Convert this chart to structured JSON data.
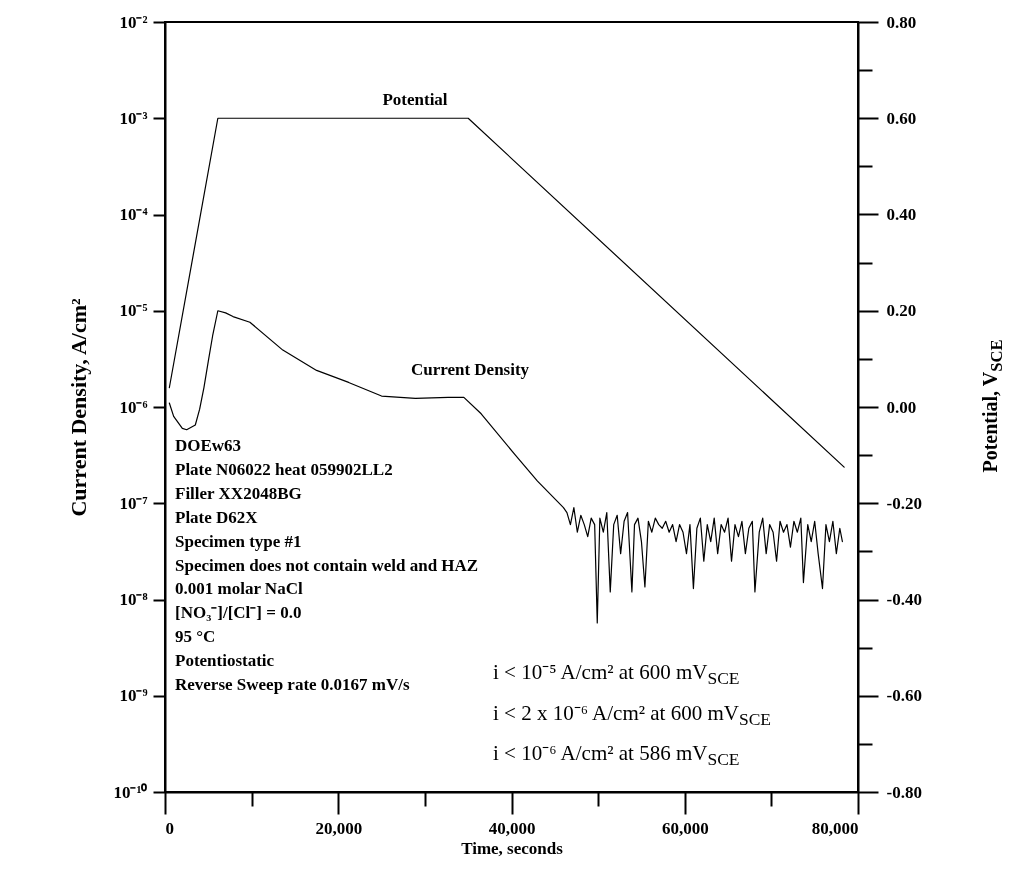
{
  "chart_data": {
    "type": "line",
    "xlabel": "Time, seconds",
    "ylabel": "Current Density, A/cm²",
    "y2label": "Potential, V$_{SCE}$",
    "xlim": [
      0,
      80000
    ],
    "xticks": [
      0,
      {
        "value": 10000,
        "label": null
      },
      {
        "value": 20000,
        "label": "20,000"
      },
      {
        "value": 30000,
        "label": null
      },
      {
        "value": 40000,
        "label": "40,000"
      },
      {
        "value": 50000,
        "label": null
      },
      {
        "value": 60000,
        "label": "60,000"
      },
      {
        "value": 70000,
        "label": null
      },
      {
        "value": 80000,
        "label": "80,000"
      }
    ],
    "ylim": [
      1e-10,
      0.01
    ],
    "log": true,
    "yticks": [
      {
        "value": 0.01,
        "label": "10⁻²"
      },
      {
        "value": 0.001,
        "label": "10⁻³"
      },
      {
        "value": 0.0001,
        "label": "10⁻⁴"
      },
      {
        "value": 1e-05,
        "label": "10⁻⁵"
      },
      {
        "value": 1e-06,
        "label": "10⁻⁶"
      },
      {
        "value": 1e-07,
        "label": "10⁻⁷"
      },
      {
        "value": 1e-08,
        "label": "10⁻⁸"
      },
      {
        "value": 1e-09,
        "label": "10⁻⁹"
      },
      {
        "value": 1e-10,
        "label": "10⁻¹⁰"
      }
    ],
    "y2lim": [
      -0.8,
      0.8
    ],
    "y2ticks": [
      {
        "value": 0.8,
        "label": "0.80"
      },
      {
        "value": 0.7,
        "label": null
      },
      {
        "value": 0.6,
        "label": "0.60"
      },
      {
        "value": 0.5,
        "label": null
      },
      {
        "value": 0.4,
        "label": "0.40"
      },
      {
        "value": 0.3,
        "label": null
      },
      {
        "value": 0.2,
        "label": "0.20"
      },
      {
        "value": 0.1,
        "label": null
      },
      {
        "value": 0,
        "label": "0.00"
      },
      {
        "value": -0.1,
        "label": null
      },
      {
        "value": -0.2,
        "label": "-0.20"
      },
      {
        "value": -0.3,
        "label": null
      },
      {
        "value": -0.4,
        "label": "-0.40"
      },
      {
        "value": -0.5,
        "label": null
      },
      {
        "value": -0.6,
        "label": "-0.60"
      },
      {
        "value": -0.7,
        "label": null
      },
      {
        "value": -0.8,
        "label": "-0.80"
      }
    ],
    "line_style": "solid",
    "series": [
      {
        "name": "Current Density",
        "color": "#000000",
        "x": [
          500,
          1000,
          2000,
          2500,
          3500,
          4000,
          4500,
          5000,
          5500,
          6100,
          7000,
          7850,
          9800,
          13600,
          17500,
          21200,
          25000,
          28900,
          32700,
          34500,
          36500,
          40400,
          43000,
          46000,
          46400,
          46800,
          47200,
          47600,
          48000,
          48400,
          48800,
          49200,
          49600,
          49900,
          50200,
          50600,
          51000,
          51400,
          51800,
          52200,
          52600,
          53000,
          53400,
          53900,
          54200,
          54600,
          55000,
          55400,
          55800,
          56200,
          56600,
          57000,
          57400,
          57800,
          58200,
          58600,
          59000,
          59400,
          59800,
          60200,
          60600,
          61000,
          61400,
          61800,
          62200,
          62600,
          63000,
          63400,
          63800,
          64200,
          64600,
          65000,
          65400,
          65800,
          66200,
          66600,
          67000,
          67400,
          67800,
          68100,
          68600,
          69000,
          69400,
          69800,
          70200,
          70600,
          71000,
          71400,
          71800,
          72200,
          72600,
          73000,
          73400,
          73700,
          74200,
          74600,
          75000,
          75400,
          75900,
          76300,
          76700,
          77100,
          77500,
          77900,
          78200
        ],
        "values": [
          1.1e-06,
          8e-07,
          6e-07,
          5.8e-07,
          6.5e-07,
          9.5e-07,
          1.6e-06,
          3e-06,
          5.5e-06,
          1e-05,
          9.5e-06,
          8.7e-06,
          7.6e-06,
          3.9e-06,
          2.4e-06,
          1.8e-06,
          1.3e-06,
          1.23e-06,
          1.26e-06,
          1.26e-06,
          8.5e-07,
          3.2e-07,
          1.7e-07,
          9e-08,
          8e-08,
          6e-08,
          9e-08,
          5e-08,
          7.5e-08,
          6e-08,
          4.5e-08,
          7e-08,
          6e-08,
          5.7e-09,
          7e-08,
          5e-08,
          8e-08,
          1.2e-08,
          6e-08,
          7.5e-08,
          3e-08,
          6.5e-08,
          8e-08,
          1.2e-08,
          6e-08,
          7e-08,
          4e-08,
          1.35e-08,
          6.5e-08,
          5e-08,
          7e-08,
          6e-08,
          5.5e-08,
          6.5e-08,
          5e-08,
          6e-08,
          4e-08,
          6e-08,
          5e-08,
          3e-08,
          6e-08,
          1.3e-08,
          5.5e-08,
          7e-08,
          2.5e-08,
          6e-08,
          4e-08,
          7e-08,
          3e-08,
          6e-08,
          5e-08,
          7e-08,
          2.5e-08,
          6e-08,
          4.5e-08,
          6.5e-08,
          3e-08,
          5.5e-08,
          6.5e-08,
          1.2e-08,
          5e-08,
          7e-08,
          3e-08,
          6e-08,
          5e-08,
          2.5e-08,
          6.5e-08,
          5e-08,
          6e-08,
          3.5e-08,
          6.5e-08,
          5e-08,
          7e-08,
          1.5e-08,
          6e-08,
          4e-08,
          6.5e-08,
          3e-08,
          1.3e-08,
          6e-08,
          4e-08,
          6.5e-08,
          3e-08,
          5.5e-08,
          4e-08
        ]
      },
      {
        "name": "Potential",
        "color": "#000000",
        "axis": "y2",
        "x": [
          500,
          6100,
          35000,
          78400
        ],
        "values": [
          0.04,
          0.6,
          0.6,
          -0.125
        ]
      }
    ],
    "annotations": [
      "DOEw63",
      "Plate N06022 heat 059902LL2",
      "Filler XX2048BG",
      "Plate D62X",
      "Specimen type #1",
      "Specimen does not contain weld and HAZ",
      "0.001 molar NaCl",
      "[NO₃⁻]/[Cl⁻] = 0.0",
      "95 °C",
      "Potentiostatic",
      "Reverse Sweep rate 0.0167 mV/s",
      "i < 10⁻⁵ A/cm² at 600 mV$_{SCE}$",
      "i < 2 x 10⁻⁶ A/cm² at 600 mV$_{SCE}$",
      "i < 10⁻⁶ A/cm² at 586 mV$_{SCE}$"
    ]
  }
}
